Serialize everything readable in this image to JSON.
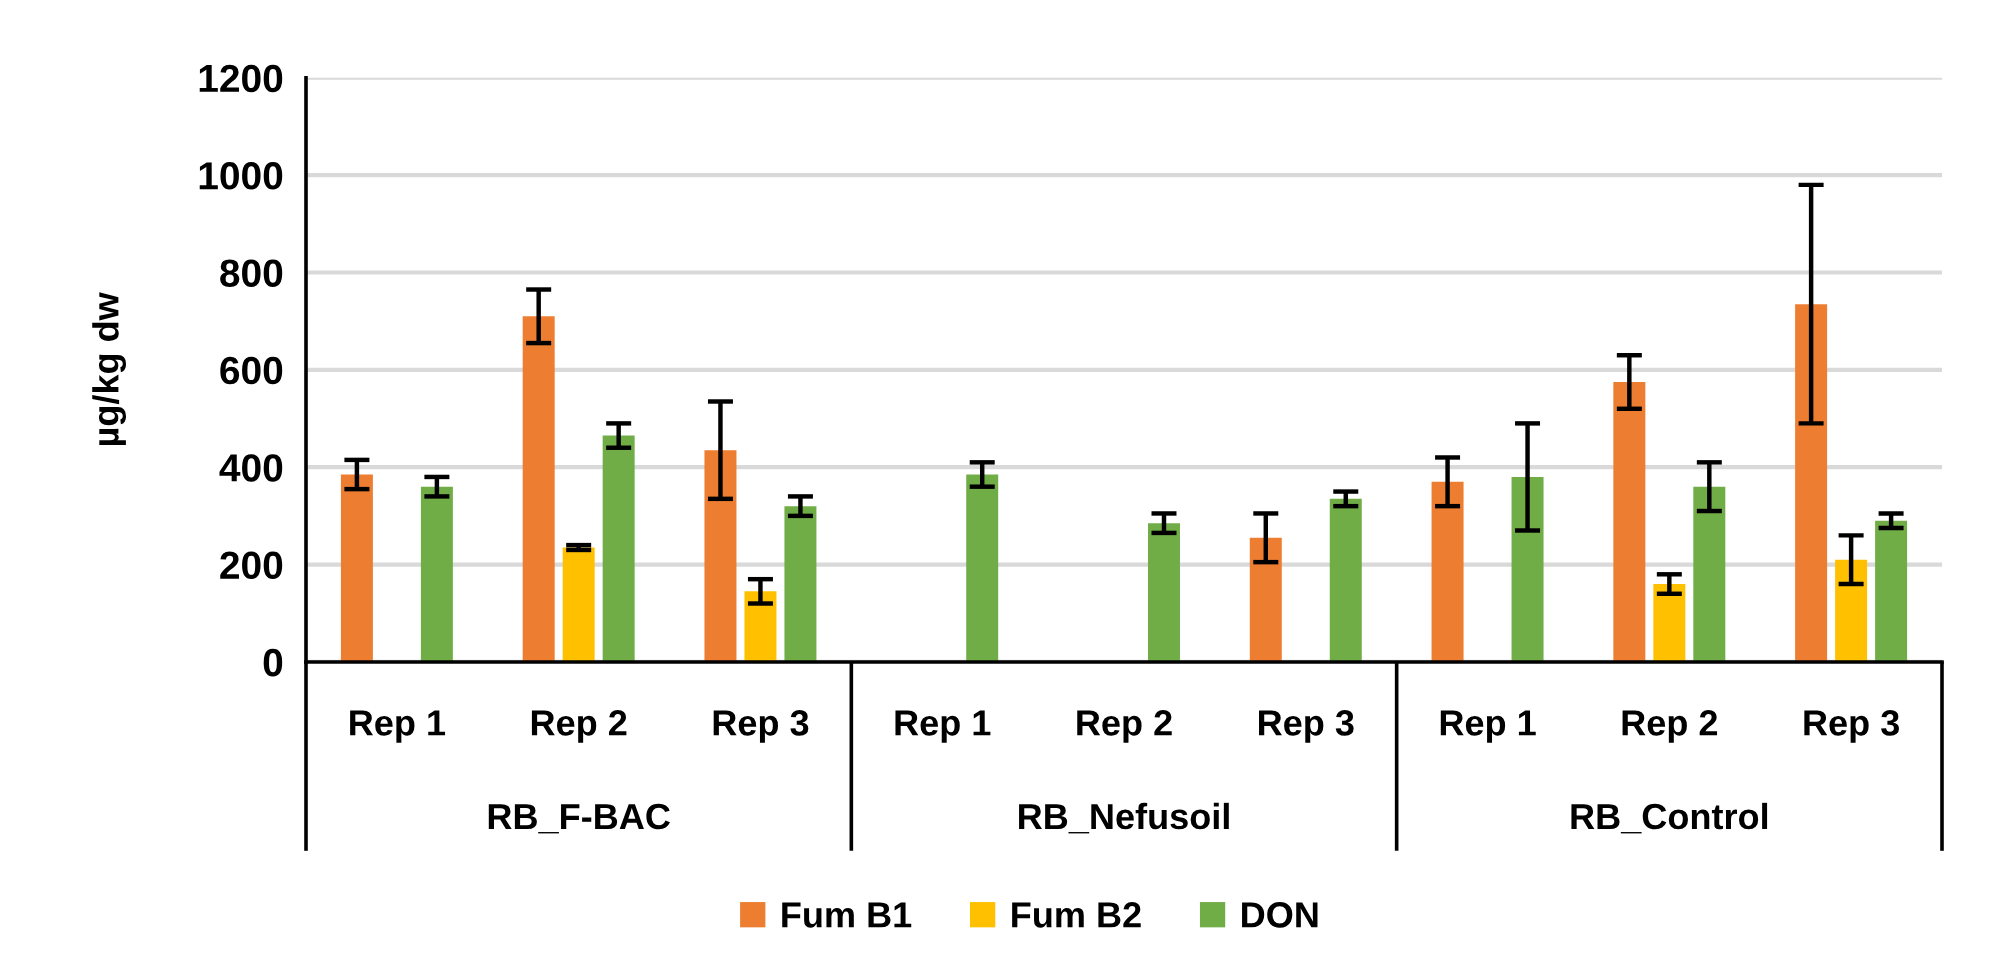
{
  "chart_data": {
    "type": "bar",
    "categories": [
      "Rep 1",
      "Rep 2",
      "Rep 3",
      "Rep 1",
      "Rep 2",
      "Rep 3",
      "Rep 1",
      "Rep 2",
      "Rep 3"
    ],
    "annotations": [
      "RB_F-BAC",
      "RB_Nefusoil",
      "RB_Control"
    ],
    "ylabel": "µg/kg dw",
    "series": [
      {
        "name": "Fum B1",
        "color": "#ed7d31",
        "values": [
          385,
          710,
          435,
          null,
          null,
          255,
          370,
          575,
          735
        ],
        "errors": [
          30,
          55,
          100,
          null,
          null,
          50,
          50,
          55,
          245
        ]
      },
      {
        "name": "Fum B2",
        "color": "#ffc000",
        "values": [
          null,
          235,
          145,
          null,
          null,
          null,
          null,
          160,
          210
        ],
        "errors": [
          null,
          5,
          25,
          null,
          null,
          null,
          null,
          20,
          50
        ]
      },
      {
        "name": "DON",
        "color": "#70ad47",
        "values": [
          360,
          465,
          320,
          385,
          285,
          335,
          380,
          360,
          290
        ],
        "errors": [
          20,
          25,
          20,
          25,
          20,
          15,
          110,
          50,
          15
        ]
      }
    ],
    "ylim": [
      0,
      1200
    ],
    "yticks": [
      0,
      200,
      400,
      600,
      800,
      1000,
      1200
    ],
    "grid": "y",
    "legend": "bottom"
  }
}
